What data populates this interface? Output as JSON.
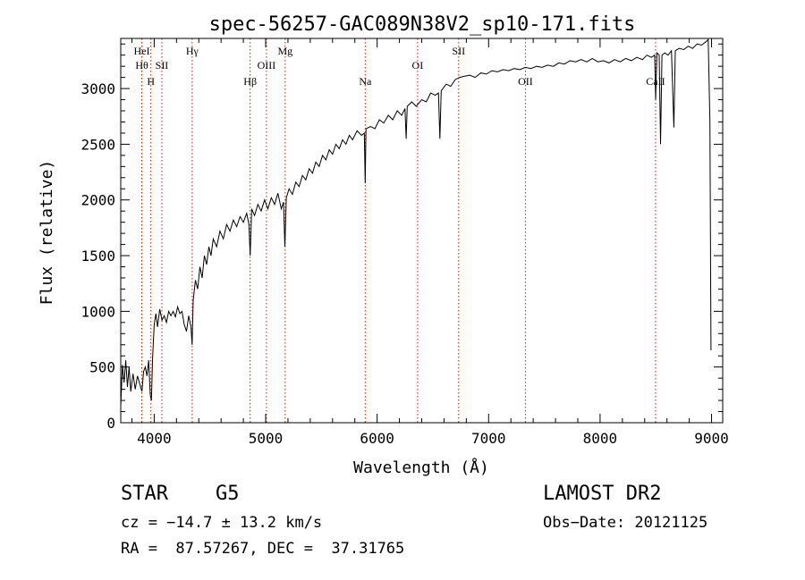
{
  "chart_data": {
    "type": "line",
    "title": "spec-56257-GAC089N38V2_sp10-171.fits",
    "xlabel": "Wavelength (Å)",
    "ylabel": "Flux (relative)",
    "xlim": [
      3700,
      9100
    ],
    "ylim": [
      0,
      3450
    ],
    "x_ticks": [
      4000,
      5000,
      6000,
      7000,
      8000,
      9000
    ],
    "y_ticks": [
      0,
      500,
      1000,
      1500,
      2000,
      2500,
      3000
    ],
    "grid": false,
    "line_color": "#000000",
    "marker_color": "#cc2200",
    "series": [
      {
        "points": [
          [
            3700,
            150
          ],
          [
            3715,
            520
          ],
          [
            3730,
            360
          ],
          [
            3745,
            560
          ],
          [
            3760,
            320
          ],
          [
            3775,
            500
          ],
          [
            3790,
            280
          ],
          [
            3810,
            440
          ],
          [
            3830,
            300
          ],
          [
            3850,
            420
          ],
          [
            3870,
            350
          ],
          [
            3890,
            280
          ],
          [
            3905,
            460
          ],
          [
            3920,
            500
          ],
          [
            3935,
            420
          ],
          [
            3950,
            560
          ],
          [
            3965,
            250
          ],
          [
            3975,
            200
          ],
          [
            3985,
            560
          ],
          [
            4000,
            880
          ],
          [
            4015,
            980
          ],
          [
            4030,
            860
          ],
          [
            4050,
            1020
          ],
          [
            4070,
            920
          ],
          [
            4090,
            960
          ],
          [
            4110,
            900
          ],
          [
            4130,
            1000
          ],
          [
            4150,
            960
          ],
          [
            4170,
            1000
          ],
          [
            4190,
            950
          ],
          [
            4210,
            1040
          ],
          [
            4230,
            980
          ],
          [
            4250,
            1000
          ],
          [
            4270,
            880
          ],
          [
            4290,
            820
          ],
          [
            4310,
            960
          ],
          [
            4330,
            860
          ],
          [
            4340,
            700
          ],
          [
            4350,
            1100
          ],
          [
            4370,
            1280
          ],
          [
            4390,
            1200
          ],
          [
            4410,
            1400
          ],
          [
            4430,
            1300
          ],
          [
            4450,
            1500
          ],
          [
            4470,
            1420
          ],
          [
            4490,
            1580
          ],
          [
            4510,
            1500
          ],
          [
            4530,
            1650
          ],
          [
            4560,
            1580
          ],
          [
            4590,
            1720
          ],
          [
            4620,
            1650
          ],
          [
            4650,
            1780
          ],
          [
            4680,
            1720
          ],
          [
            4710,
            1820
          ],
          [
            4740,
            1760
          ],
          [
            4770,
            1850
          ],
          [
            4800,
            1800
          ],
          [
            4830,
            1880
          ],
          [
            4850,
            1780
          ],
          [
            4861,
            1500
          ],
          [
            4875,
            1920
          ],
          [
            4900,
            1860
          ],
          [
            4930,
            1960
          ],
          [
            4960,
            1900
          ],
          [
            4990,
            2000
          ],
          [
            5020,
            1920
          ],
          [
            5050,
            2020
          ],
          [
            5080,
            1960
          ],
          [
            5110,
            2060
          ],
          [
            5140,
            1920
          ],
          [
            5160,
            1980
          ],
          [
            5172,
            1580
          ],
          [
            5185,
            2020
          ],
          [
            5210,
            2100
          ],
          [
            5240,
            2050
          ],
          [
            5270,
            2160
          ],
          [
            5300,
            2120
          ],
          [
            5330,
            2220
          ],
          [
            5360,
            2180
          ],
          [
            5390,
            2280
          ],
          [
            5420,
            2240
          ],
          [
            5450,
            2340
          ],
          [
            5480,
            2300
          ],
          [
            5510,
            2400
          ],
          [
            5540,
            2360
          ],
          [
            5570,
            2450
          ],
          [
            5600,
            2410
          ],
          [
            5630,
            2500
          ],
          [
            5660,
            2460
          ],
          [
            5690,
            2540
          ],
          [
            5720,
            2500
          ],
          [
            5750,
            2580
          ],
          [
            5780,
            2540
          ],
          [
            5820,
            2620
          ],
          [
            5860,
            2580
          ],
          [
            5885,
            2600
          ],
          [
            5893,
            2150
          ],
          [
            5900,
            2640
          ],
          [
            5940,
            2660
          ],
          [
            5980,
            2640
          ],
          [
            6020,
            2720
          ],
          [
            6060,
            2690
          ],
          [
            6100,
            2760
          ],
          [
            6140,
            2720
          ],
          [
            6180,
            2800
          ],
          [
            6220,
            2760
          ],
          [
            6250,
            2820
          ],
          [
            6260,
            2550
          ],
          [
            6270,
            2840
          ],
          [
            6310,
            2880
          ],
          [
            6350,
            2840
          ],
          [
            6400,
            2900
          ],
          [
            6440,
            2880
          ],
          [
            6480,
            2960
          ],
          [
            6520,
            2940
          ],
          [
            6550,
            2960
          ],
          [
            6563,
            2550
          ],
          [
            6575,
            2980
          ],
          [
            6620,
            3040
          ],
          [
            6660,
            3020
          ],
          [
            6700,
            3080
          ],
          [
            6740,
            3100
          ],
          [
            6780,
            3110
          ],
          [
            6830,
            3120
          ],
          [
            6880,
            3100
          ],
          [
            6930,
            3140
          ],
          [
            6980,
            3130
          ],
          [
            7030,
            3160
          ],
          [
            7080,
            3150
          ],
          [
            7130,
            3170
          ],
          [
            7180,
            3160
          ],
          [
            7230,
            3180
          ],
          [
            7280,
            3170
          ],
          [
            7330,
            3190
          ],
          [
            7380,
            3180
          ],
          [
            7430,
            3200
          ],
          [
            7480,
            3190
          ],
          [
            7530,
            3210
          ],
          [
            7580,
            3200
          ],
          [
            7630,
            3230
          ],
          [
            7680,
            3220
          ],
          [
            7730,
            3250
          ],
          [
            7780,
            3240
          ],
          [
            7830,
            3260
          ],
          [
            7880,
            3240
          ],
          [
            7930,
            3270
          ],
          [
            7980,
            3240
          ],
          [
            8030,
            3250
          ],
          [
            8080,
            3230
          ],
          [
            8130,
            3260
          ],
          [
            8180,
            3240
          ],
          [
            8230,
            3270
          ],
          [
            8280,
            3250
          ],
          [
            8330,
            3280
          ],
          [
            8380,
            3260
          ],
          [
            8420,
            3300
          ],
          [
            8460,
            3280
          ],
          [
            8490,
            3300
          ],
          [
            8498,
            2900
          ],
          [
            8510,
            3320
          ],
          [
            8530,
            3300
          ],
          [
            8542,
            2500
          ],
          [
            8555,
            3300
          ],
          [
            8580,
            3320
          ],
          [
            8610,
            3300
          ],
          [
            8640,
            3340
          ],
          [
            8662,
            2650
          ],
          [
            8675,
            3340
          ],
          [
            8710,
            3360
          ],
          [
            8750,
            3350
          ],
          [
            8790,
            3380
          ],
          [
            8830,
            3360
          ],
          [
            8870,
            3400
          ],
          [
            8910,
            3390
          ],
          [
            8950,
            3420
          ],
          [
            8970,
            3440
          ],
          [
            8985,
            2700
          ],
          [
            8995,
            650
          ]
        ]
      }
    ],
    "lines": [
      {
        "w": 3889,
        "label": "HeI",
        "row": 1
      },
      {
        "w": 3889,
        "label": "Hθ",
        "row": 2
      },
      {
        "w": 3970,
        "label": "H",
        "row": 3
      },
      {
        "w": 4069,
        "label": "SII",
        "row": 2
      },
      {
        "w": 4341,
        "label": "Hγ",
        "row": 1
      },
      {
        "w": 4861,
        "label": "Hβ",
        "row": 3
      },
      {
        "w": 5007,
        "label": "OIII",
        "row": 2
      },
      {
        "w": 5175,
        "label": "Mg",
        "row": 1
      },
      {
        "w": 5893,
        "label": "Na",
        "row": 3
      },
      {
        "w": 6363,
        "label": "OI",
        "row": 2
      },
      {
        "w": 6731,
        "label": "SII",
        "row": 1
      },
      {
        "w": 7330,
        "label": "OII",
        "row": 3
      },
      {
        "w": 8498,
        "label": "CaII",
        "row": 3
      }
    ]
  },
  "info": {
    "object_class": "STAR",
    "subclass": "G5",
    "survey": "LAMOST DR2",
    "redshift": "cz = −14.7 ± 13.2 km/s",
    "obs_date": "Obs−Date: 20121125",
    "coords": "RA =  87.57267, DEC =  37.31765"
  }
}
